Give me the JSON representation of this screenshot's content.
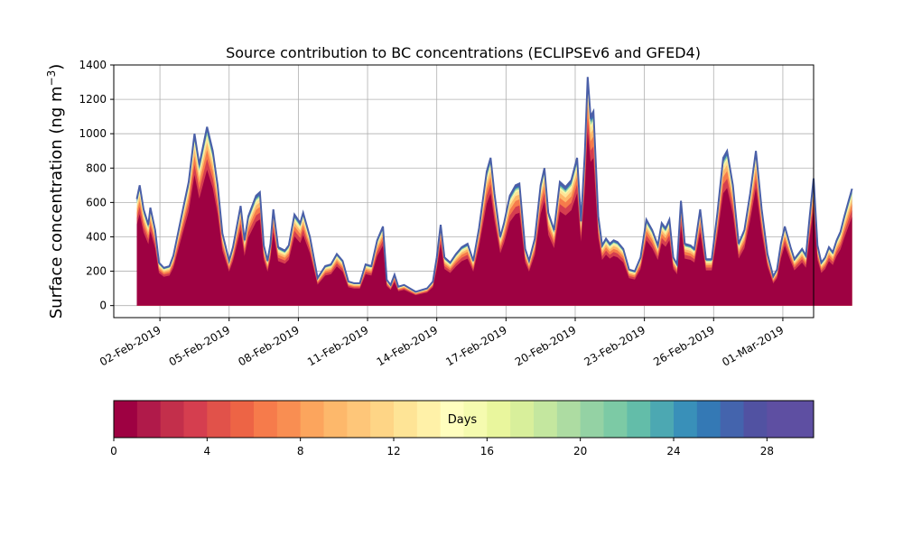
{
  "chart_data": {
    "type": "area",
    "title": "Source contribution to BC concentrations (ECLIPSEv6 and GFED4)",
    "ylabel": "Surface concentration (ng m",
    "ylabel_superscript": "−3",
    "ylabel_close": ")",
    "xlabel": "",
    "ylim": [
      -70,
      1400
    ],
    "yticks": [
      0,
      200,
      400,
      600,
      800,
      1000,
      1200,
      1400
    ],
    "xlim": [
      "2019-01-31T00:00",
      "2019-03-02T08:00"
    ],
    "xticks": [
      "2019-02-02",
      "2019-02-05",
      "2019-02-08",
      "2019-02-11",
      "2019-02-14",
      "2019-02-17",
      "2019-02-20",
      "2019-02-23",
      "2019-02-26",
      "2019-03-01"
    ],
    "xtick_labels": [
      "02-Feb-2019",
      "05-Feb-2019",
      "08-Feb-2019",
      "11-Feb-2019",
      "14-Feb-2019",
      "17-Feb-2019",
      "20-Feb-2019",
      "23-Feb-2019",
      "26-Feb-2019",
      "01-Mar-2019"
    ],
    "grid": true,
    "series": [
      {
        "total_profile": [
          [
            "2019-02-01T00:00",
            620
          ],
          [
            "2019-02-01T03:00",
            700
          ],
          [
            "2019-02-01T07:00",
            560
          ],
          [
            "2019-02-01T12:00",
            470
          ],
          [
            "2019-02-01T14:00",
            570
          ],
          [
            "2019-02-01T19:00",
            440
          ],
          [
            "2019-02-01T23:00",
            250
          ],
          [
            "2019-02-02T04:00",
            220
          ],
          [
            "2019-02-02T10:00",
            230
          ],
          [
            "2019-02-02T14:00",
            290
          ],
          [
            "2019-02-03T00:00",
            560
          ],
          [
            "2019-02-03T06:00",
            720
          ],
          [
            "2019-02-03T12:00",
            1000
          ],
          [
            "2019-02-03T17:00",
            820
          ],
          [
            "2019-02-04T01:00",
            1040
          ],
          [
            "2019-02-04T07:00",
            900
          ],
          [
            "2019-02-04T12:00",
            700
          ],
          [
            "2019-02-04T17:00",
            420
          ],
          [
            "2019-02-05T00:00",
            260
          ],
          [
            "2019-02-05T04:00",
            340
          ],
          [
            "2019-02-05T07:00",
            430
          ],
          [
            "2019-02-05T12:00",
            580
          ],
          [
            "2019-02-05T16:00",
            380
          ],
          [
            "2019-02-05T20:00",
            520
          ],
          [
            "2019-02-06T04:00",
            640
          ],
          [
            "2019-02-06T08:00",
            660
          ],
          [
            "2019-02-06T12:00",
            350
          ],
          [
            "2019-02-06T16:00",
            260
          ],
          [
            "2019-02-06T19:00",
            360
          ],
          [
            "2019-02-06T22:00",
            560
          ],
          [
            "2019-02-07T03:00",
            340
          ],
          [
            "2019-02-07T10:00",
            320
          ],
          [
            "2019-02-07T14:00",
            350
          ],
          [
            "2019-02-07T20:00",
            530
          ],
          [
            "2019-02-08T02:00",
            480
          ],
          [
            "2019-02-08T05:00",
            540
          ],
          [
            "2019-02-08T12:00",
            400
          ],
          [
            "2019-02-08T20:00",
            160
          ],
          [
            "2019-02-09T04:00",
            230
          ],
          [
            "2019-02-09T10:00",
            240
          ],
          [
            "2019-02-09T16:00",
            300
          ],
          [
            "2019-02-09T22:00",
            260
          ],
          [
            "2019-02-10T04:00",
            140
          ],
          [
            "2019-02-10T10:00",
            130
          ],
          [
            "2019-02-10T16:00",
            130
          ],
          [
            "2019-02-10T22:00",
            240
          ],
          [
            "2019-02-11T04:00",
            230
          ],
          [
            "2019-02-11T10:00",
            380
          ],
          [
            "2019-02-11T16:00",
            460
          ],
          [
            "2019-02-11T20:00",
            150
          ],
          [
            "2019-02-12T00:00",
            120
          ],
          [
            "2019-02-12T04:00",
            180
          ],
          [
            "2019-02-12T08:00",
            110
          ],
          [
            "2019-02-12T14:00",
            120
          ],
          [
            "2019-02-12T20:00",
            100
          ],
          [
            "2019-02-13T02:00",
            80
          ],
          [
            "2019-02-13T08:00",
            90
          ],
          [
            "2019-02-13T14:00",
            100
          ],
          [
            "2019-02-13T20:00",
            140
          ],
          [
            "2019-02-14T00:00",
            280
          ],
          [
            "2019-02-14T04:00",
            470
          ],
          [
            "2019-02-14T08:00",
            280
          ],
          [
            "2019-02-14T14:00",
            250
          ],
          [
            "2019-02-14T20:00",
            300
          ],
          [
            "2019-02-15T02:00",
            340
          ],
          [
            "2019-02-15T08:00",
            360
          ],
          [
            "2019-02-15T14:00",
            260
          ],
          [
            "2019-02-15T20:00",
            450
          ],
          [
            "2019-02-16T04:00",
            780
          ],
          [
            "2019-02-16T08:00",
            860
          ],
          [
            "2019-02-16T12:00",
            650
          ],
          [
            "2019-02-16T18:00",
            400
          ],
          [
            "2019-02-16T22:00",
            480
          ],
          [
            "2019-02-17T04:00",
            640
          ],
          [
            "2019-02-17T10:00",
            700
          ],
          [
            "2019-02-17T14:00",
            710
          ],
          [
            "2019-02-17T20:00",
            330
          ],
          [
            "2019-02-18T00:00",
            260
          ],
          [
            "2019-02-18T06:00",
            390
          ],
          [
            "2019-02-18T12:00",
            700
          ],
          [
            "2019-02-18T16:00",
            800
          ],
          [
            "2019-02-18T20:00",
            540
          ],
          [
            "2019-02-19T02:00",
            440
          ],
          [
            "2019-02-19T08:00",
            720
          ],
          [
            "2019-02-19T14:00",
            690
          ],
          [
            "2019-02-19T20:00",
            730
          ],
          [
            "2019-02-20T02:00",
            860
          ],
          [
            "2019-02-20T06:00",
            490
          ],
          [
            "2019-02-20T10:00",
            880
          ],
          [
            "2019-02-20T13:00",
            1330
          ],
          [
            "2019-02-20T16:00",
            1100
          ],
          [
            "2019-02-20T19:00",
            1130
          ],
          [
            "2019-02-21T00:00",
            520
          ],
          [
            "2019-02-21T04:00",
            350
          ],
          [
            "2019-02-21T08:00",
            390
          ],
          [
            "2019-02-21T12:00",
            360
          ],
          [
            "2019-02-21T16:00",
            380
          ],
          [
            "2019-02-21T20:00",
            370
          ],
          [
            "2019-02-22T02:00",
            330
          ],
          [
            "2019-02-22T08:00",
            210
          ],
          [
            "2019-02-22T14:00",
            200
          ],
          [
            "2019-02-22T20:00",
            280
          ],
          [
            "2019-02-23T02:00",
            500
          ],
          [
            "2019-02-23T08:00",
            440
          ],
          [
            "2019-02-23T14:00",
            350
          ],
          [
            "2019-02-23T18:00",
            480
          ],
          [
            "2019-02-23T22:00",
            450
          ],
          [
            "2019-02-24T02:00",
            500
          ],
          [
            "2019-02-24T06:00",
            280
          ],
          [
            "2019-02-24T10:00",
            240
          ],
          [
            "2019-02-24T14:00",
            610
          ],
          [
            "2019-02-24T18:00",
            360
          ],
          [
            "2019-02-25T00:00",
            350
          ],
          [
            "2019-02-25T04:00",
            330
          ],
          [
            "2019-02-25T10:00",
            560
          ],
          [
            "2019-02-25T16:00",
            270
          ],
          [
            "2019-02-25T22:00",
            270
          ],
          [
            "2019-02-26T04:00",
            540
          ],
          [
            "2019-02-26T10:00",
            860
          ],
          [
            "2019-02-26T14:00",
            900
          ],
          [
            "2019-02-26T20:00",
            700
          ],
          [
            "2019-02-27T02:00",
            360
          ],
          [
            "2019-02-27T08:00",
            440
          ],
          [
            "2019-02-27T14:00",
            650
          ],
          [
            "2019-02-27T20:00",
            900
          ],
          [
            "2019-02-28T02:00",
            560
          ],
          [
            "2019-02-28T08:00",
            300
          ],
          [
            "2019-02-28T14:00",
            170
          ],
          [
            "2019-02-28T18:00",
            210
          ],
          [
            "2019-02-28T22:00",
            360
          ],
          [
            "2019-03-01T02:00",
            460
          ],
          [
            "2019-03-01T08:00",
            340
          ],
          [
            "2019-03-01T12:00",
            270
          ],
          [
            "2019-03-01T16:00",
            300
          ],
          [
            "2019-03-01T20:00",
            330
          ],
          [
            "2019-03-02T00:00",
            290
          ],
          [
            "2019-03-02T04:00",
            520
          ],
          [
            "2019-03-02T08:00",
            740
          ],
          [
            "2019-03-02T12:00",
            350
          ],
          [
            "2019-03-02T16:00",
            250
          ],
          [
            "2019-03-02T20:00",
            280
          ],
          [
            "2019-03-03T00:00",
            340
          ],
          [
            "2019-03-03T04:00",
            310
          ],
          [
            "2019-03-03T08:00",
            380
          ],
          [
            "2019-03-03T12:00",
            430
          ],
          [
            "2019-03-03T16:00",
            520
          ],
          [
            "2019-03-03T20:00",
            600
          ],
          [
            "2019-03-04T00:00",
            680
          ]
        ]
      }
    ],
    "colorbar": {
      "label": "Days",
      "range": [
        0,
        30
      ],
      "ticks": [
        0,
        4,
        8,
        12,
        16,
        20,
        24,
        28
      ],
      "colors": [
        "#9e0142",
        "#b01a4a",
        "#c32f4b",
        "#d53e4f",
        "#e1524a",
        "#ed6445",
        "#f67b4b",
        "#f98e52",
        "#fca55d",
        "#fdb86b",
        "#fec679",
        "#fed586",
        "#fee496",
        "#fff1a8",
        "#fffebe",
        "#f5fbaf",
        "#e9f69d",
        "#d8ef9b",
        "#c4e79f",
        "#addca2",
        "#94d2a4",
        "#7ccaa5",
        "#63bda9",
        "#4ca8b2",
        "#3990b9",
        "#3479b5",
        "#4464ad",
        "#5152a2",
        "#5e4fa2",
        "#5e4fa2"
      ]
    }
  }
}
